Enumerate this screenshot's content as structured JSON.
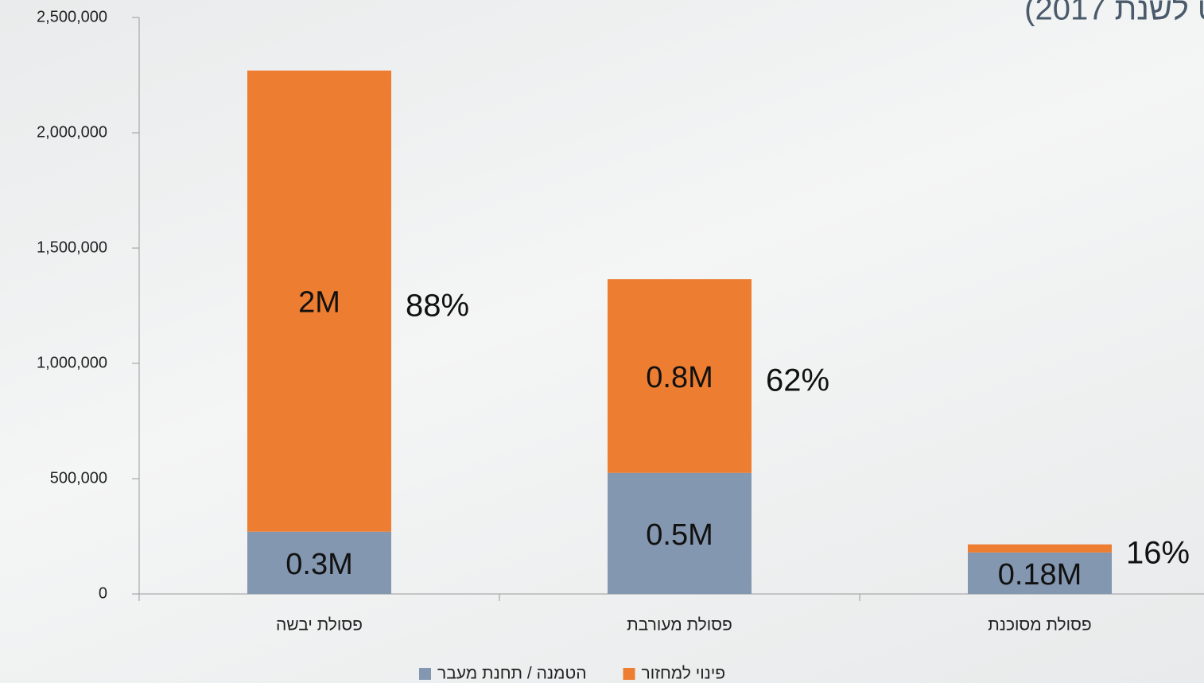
{
  "chart_data": {
    "type": "stacked_bar",
    "title": "ט לשנת 2017)",
    "categories": [
      "פסולת יבשה",
      "פסולת מעורבת",
      "פסולת מסוכנת"
    ],
    "series": [
      {
        "name": "הטמנה / תחנת מעבר",
        "color": "#8497b0",
        "values": [
          270000,
          525000,
          180000
        ],
        "value_labels": [
          "0.3M",
          "0.5M",
          "0.18M"
        ]
      },
      {
        "name": "פינוי למחזור",
        "color": "#ed7d31",
        "values": [
          2000000,
          840000,
          35000
        ],
        "value_labels": [
          "2M",
          "0.8M",
          null
        ]
      }
    ],
    "annotations": [
      "88%",
      "62%",
      "16%"
    ],
    "ylim": [
      0,
      2500000
    ],
    "yticks": [
      0,
      {
        "value": 500000,
        "label": "500,000"
      },
      {
        "value": 1000000,
        "label": "1,000,000"
      },
      {
        "value": 1500000,
        "label": "1,500,000"
      },
      {
        "value": 2000000,
        "label": "2,000,000"
      },
      {
        "value": 2500000,
        "label": "2,500,000"
      }
    ],
    "legend": "bottom"
  }
}
